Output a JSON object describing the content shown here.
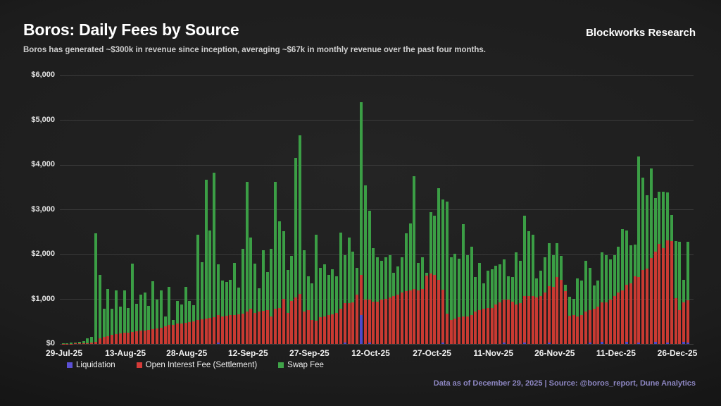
{
  "header": {
    "title": "Boros: Daily Fees by Source",
    "brand": "Blockworks Research",
    "subtitle": "Boros has generated ~$300k in revenue since inception, averaging ~$67k in monthly revenue over the past four months."
  },
  "footer": {
    "note": "Data as of December 29, 2025 | Source: @boros_report, Dune Analytics"
  },
  "colors": {
    "background": "#1d1d1d",
    "gridline": "#3b3b3b",
    "liquidation": "#5049cc",
    "open_interest_fee": "#c93a32",
    "swap_fee": "#3b9e45",
    "legend_liquidation": "#5b50d4",
    "legend_open_interest": "#d43b38",
    "legend_swap": "#3fa348",
    "footer_text": "#8e87c3"
  },
  "chart_data": {
    "type": "bar",
    "stacked": true,
    "title": "Boros: Daily Fees by Source",
    "ylim": [
      0,
      6000
    ],
    "grid": true,
    "legend_position": "bottom-left",
    "y_ticks": [
      [
        0,
        "$0"
      ],
      [
        1000,
        "$1,000"
      ],
      [
        2000,
        "$2,000"
      ],
      [
        3000,
        "$3,000"
      ],
      [
        4000,
        "$4,000"
      ],
      [
        5000,
        "$5,000"
      ],
      [
        6000,
        "$6,000"
      ]
    ],
    "x_tick_labels": [
      "29-Jul-25",
      "13-Aug-25",
      "28-Aug-25",
      "12-Sep-25",
      "27-Sep-25",
      "12-Oct-25",
      "27-Oct-25",
      "11-Nov-25",
      "26-Nov-25",
      "11-Dec-25",
      "26-Dec-25"
    ],
    "n_bars": 154,
    "series": [
      {
        "name": "Liquidation",
        "color": "#5049cc",
        "values": [
          0,
          0,
          0,
          0,
          0,
          0,
          0,
          0,
          0,
          0,
          0,
          0,
          0,
          0,
          0,
          0,
          0,
          0,
          0,
          0,
          0,
          0,
          0,
          0,
          0,
          0,
          0,
          0,
          0,
          0,
          0,
          0,
          0,
          0,
          0,
          0,
          0,
          0,
          30,
          0,
          0,
          0,
          0,
          0,
          0,
          0,
          0,
          0,
          0,
          0,
          0,
          0,
          0,
          0,
          0,
          0,
          0,
          0,
          0,
          0,
          0,
          0,
          0,
          0,
          0,
          0,
          0,
          0,
          0,
          30,
          0,
          0,
          0,
          640,
          0,
          30,
          0,
          0,
          0,
          0,
          0,
          0,
          0,
          0,
          0,
          0,
          0,
          0,
          0,
          0,
          0,
          0,
          0,
          35,
          0,
          0,
          0,
          0,
          0,
          0,
          0,
          0,
          0,
          0,
          0,
          0,
          0,
          0,
          30,
          0,
          0,
          0,
          0,
          30,
          0,
          0,
          0,
          0,
          0,
          35,
          0,
          0,
          0,
          0,
          0,
          0,
          0,
          0,
          0,
          30,
          0,
          0,
          40,
          0,
          0,
          0,
          0,
          0,
          40,
          0,
          0,
          30,
          0,
          0,
          0,
          45,
          0,
          0,
          35,
          0,
          0,
          0,
          40,
          30
        ]
      },
      {
        "name": "Open Interest Fee (Settlement)",
        "color": "#c93a32",
        "values": [
          5,
          5,
          5,
          10,
          10,
          15,
          20,
          30,
          50,
          120,
          150,
          180,
          200,
          225,
          240,
          250,
          260,
          270,
          285,
          295,
          305,
          315,
          330,
          345,
          360,
          395,
          420,
          420,
          460,
          460,
          480,
          490,
          505,
          540,
          545,
          560,
          580,
          600,
          610,
          620,
          630,
          640,
          650,
          660,
          675,
          725,
          780,
          700,
          720,
          740,
          760,
          620,
          780,
          800,
          1015,
          700,
          965,
          1040,
          1120,
          720,
          755,
          540,
          515,
          595,
          620,
          645,
          660,
          700,
          780,
          885,
          910,
          935,
          1100,
          900,
          1000,
          965,
          940,
          940,
          990,
          1015,
          1040,
          1070,
          1095,
          1145,
          1175,
          1200,
          1225,
          1200,
          1230,
          1525,
          1570,
          1550,
          1435,
          1170,
          675,
          540,
          570,
          595,
          620,
          620,
          645,
          725,
          755,
          780,
          805,
          810,
          885,
          935,
          965,
          990,
          940,
          885,
          910,
          1040,
          1070,
          1070,
          1040,
          1070,
          1145,
          1255,
          1280,
          1490,
          1435,
          1175,
          630,
          645,
          620,
          645,
          725,
          725,
          780,
          830,
          885,
          935,
          990,
          1070,
          1145,
          1200,
          1280,
          1360,
          1515,
          1470,
          1655,
          1680,
          1920,
          2015,
          2235,
          2145,
          2285,
          2305,
          1030,
          755,
          885,
          940
        ]
      },
      {
        "name": "Swap Fee",
        "color": "#3b9e45",
        "values": [
          15,
          10,
          20,
          25,
          35,
          45,
          105,
          130,
          2420,
          1430,
          630,
          1050,
          580,
          975,
          590,
          950,
          540,
          1530,
          615,
          805,
          845,
          535,
          1070,
          655,
          840,
          225,
          860,
          120,
          500,
          420,
          800,
          470,
          355,
          1900,
          1285,
          3115,
          1960,
          3230,
          1140,
          790,
          755,
          800,
          1155,
          595,
          1445,
          2895,
          1605,
          1100,
          530,
          1360,
          840,
          1500,
          2840,
          1940,
          1505,
          950,
          1000,
          3120,
          3535,
          1375,
          760,
          820,
          1920,
          1105,
          1160,
          895,
          1015,
          815,
          1710,
          1075,
          1475,
          1135,
          600,
          3860,
          2540,
          1975,
          1205,
          995,
          870,
          920,
          950,
          525,
          630,
          790,
          1290,
          1500,
          2530,
          605,
          705,
          70,
          1370,
          1310,
          2040,
          2020,
          2500,
          1395,
          1445,
          1315,
          2055,
          1370,
          1530,
          765,
          1050,
          580,
          840,
          865,
          870,
          845,
          890,
          525,
          550,
          1155,
          950,
          1790,
          1445,
          1365,
          425,
          575,
          790,
          965,
          710,
          765,
          530,
          155,
          420,
          370,
          845,
          765,
          1135,
          945,
          525,
          580,
          1115,
          1055,
          895,
          920,
          1030,
          1370,
          1220,
          840,
          710,
          2685,
          2060,
          1640,
          2000,
          1205,
          1170,
          1260,
          1065,
          575,
          1275,
          1530,
          510,
          1315
        ]
      }
    ]
  }
}
